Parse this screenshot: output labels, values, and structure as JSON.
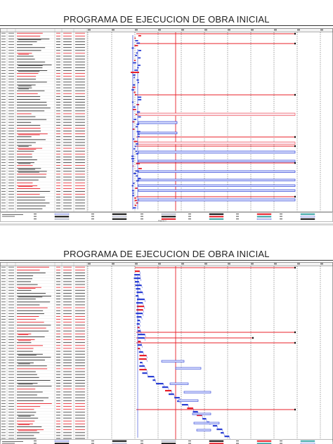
{
  "pages": [
    {
      "title": "PROGRAMA DE EJECUCION DE OBRA INICIAL",
      "footer": "Página 1"
    },
    {
      "title": "PROGRAMA DE EJECUCION DE OBRA INICIAL",
      "footer": ""
    }
  ],
  "legend": {
    "note": "Proyecto: programa de ejecución de obra inicial",
    "items": [
      "Tarea",
      "División",
      "Hito",
      "Resumen",
      "Resumen del proyecto",
      "Tarea externa",
      "Hito externo",
      "Tarea inactiva",
      "Hito inactivo",
      "Resumen inactivo",
      "Tarea manual",
      "solo duración",
      "Informe de resumen manual",
      "Resumen manual",
      "solo el comienzo",
      "solo fin",
      "Fecha límite",
      "Tareas críticas",
      "División crítica",
      "Progreso",
      "Progreso manual"
    ]
  },
  "colors": {
    "critical": "#e8202a",
    "task": "#2b3fd4",
    "summary": "#111111",
    "grid": "#000000"
  }
}
